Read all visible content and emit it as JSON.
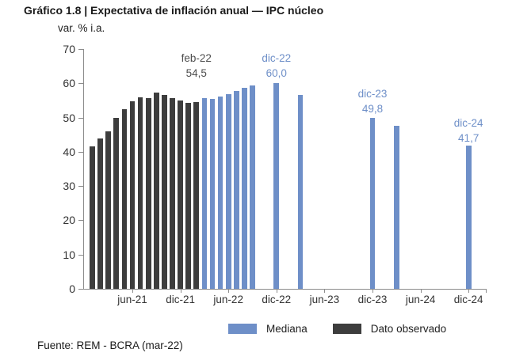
{
  "header": {
    "title": "Gráfico 1.8 | Expectativa de inflación anual — IPC núcleo",
    "subtitle": "var. % i.a."
  },
  "footer": {
    "source": "Fuente: REM - BCRA (mar-22)"
  },
  "colors": {
    "median_blue": "#6E8FC8",
    "observed_dark": "#3D3D3D",
    "annotation_gray": "#4D4D4D",
    "axis": "#8C8C8C",
    "tick_text": "#333333",
    "text": "#1A1A1A"
  },
  "legend": {
    "items": [
      {
        "label": "Mediana",
        "color_key": "median_blue"
      },
      {
        "label": "Dato observado",
        "color_key": "observed_dark"
      }
    ]
  },
  "chart_data": {
    "type": "bar",
    "title": "Expectativa de inflación anual — IPC núcleo",
    "ylabel": "var. % i.a.",
    "ylim": [
      0,
      70
    ],
    "y_ticks": [
      70,
      60,
      50,
      40,
      30,
      20,
      10,
      0
    ],
    "x_tick_labels": [
      "jun-21",
      "dic-21",
      "jun-22",
      "dic-22",
      "jun-23",
      "dic-23",
      "jun-24",
      "dic-24"
    ],
    "grid": false,
    "legend_position": "bottom-center",
    "series": [
      {
        "name": "Dato observado",
        "color_key": "observed_dark",
        "points": [
          {
            "m": "ene-21",
            "v": 41.5
          },
          {
            "m": "feb-21",
            "v": 44.0
          },
          {
            "m": "mar-21",
            "v": 46.0
          },
          {
            "m": "abr-21",
            "v": 50.0
          },
          {
            "m": "may-21",
            "v": 52.5
          },
          {
            "m": "jun-21",
            "v": 54.8
          },
          {
            "m": "jul-21",
            "v": 55.8
          },
          {
            "m": "ago-21",
            "v": 55.6
          },
          {
            "m": "sep-21",
            "v": 57.3
          },
          {
            "m": "oct-21",
            "v": 56.7
          },
          {
            "m": "nov-21",
            "v": 55.6
          },
          {
            "m": "dic-21",
            "v": 55.0
          },
          {
            "m": "ene-22",
            "v": 54.2
          },
          {
            "m": "feb-22",
            "v": 54.5
          }
        ]
      },
      {
        "name": "Mediana",
        "color_key": "median_blue",
        "points": [
          {
            "m": "mar-22",
            "v": 55.7
          },
          {
            "m": "abr-22",
            "v": 55.5
          },
          {
            "m": "may-22",
            "v": 56.2
          },
          {
            "m": "jun-22",
            "v": 56.8
          },
          {
            "m": "jul-22",
            "v": 57.7
          },
          {
            "m": "ago-22",
            "v": 58.7
          },
          {
            "m": "sep-22",
            "v": 59.3
          },
          {
            "m": "dic-22",
            "v": 60.0
          },
          {
            "m": "mar-23",
            "v": 56.6
          },
          {
            "m": "dic-23",
            "v": 49.8
          },
          {
            "m": "mar-24",
            "v": 47.7
          },
          {
            "m": "dic-24",
            "v": 41.7
          }
        ]
      }
    ],
    "annotations": [
      {
        "month": "feb-22",
        "lines": [
          "feb-22",
          "54,5"
        ],
        "series": "observed"
      },
      {
        "month": "dic-22",
        "lines": [
          "dic-22",
          "60,0"
        ],
        "series": "median"
      },
      {
        "month": "dic-23",
        "lines": [
          "dic-23",
          "49,8"
        ],
        "series": "median"
      },
      {
        "month": "dic-24",
        "lines": [
          "dic-24",
          "41,7"
        ],
        "series": "median"
      }
    ]
  }
}
